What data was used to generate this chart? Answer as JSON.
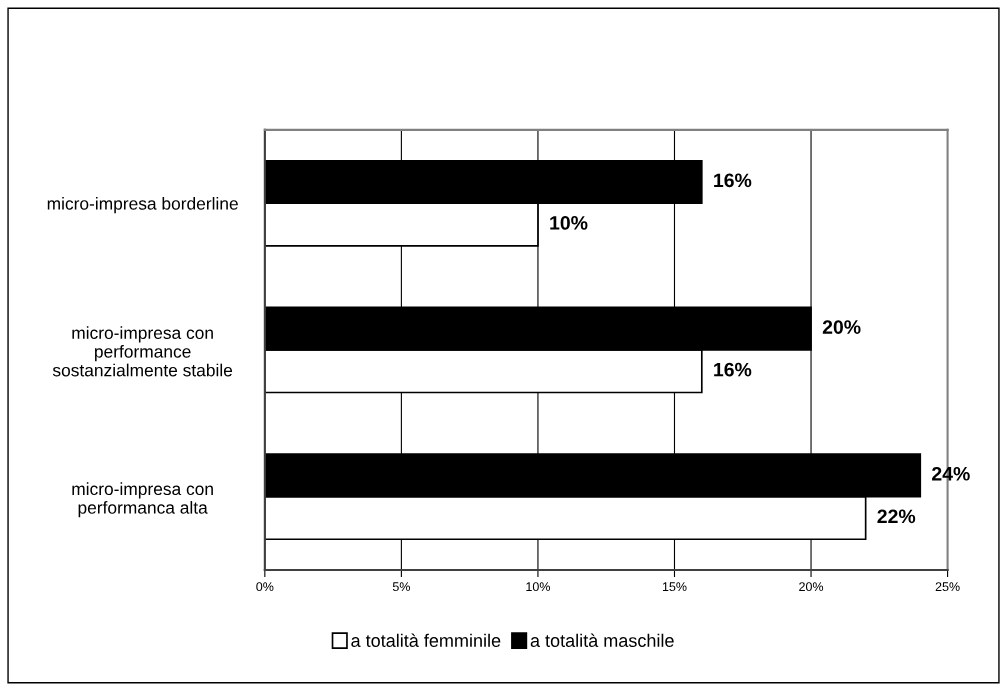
{
  "chart_data": {
    "type": "bar",
    "orientation": "horizontal",
    "categories": [
      "micro-impresa borderline",
      "micro-impresa con\nperformance\nsostanzialmente stabile",
      "micro-impresa con\nperformanca alta"
    ],
    "series": [
      {
        "name": "a totalità femminile",
        "color": "#ffffff",
        "values": [
          10,
          16,
          22
        ],
        "value_labels": [
          "10%",
          "16%",
          "22%"
        ]
      },
      {
        "name": "a totalità maschile",
        "color": "#000000",
        "values": [
          16,
          20,
          24
        ],
        "value_labels": [
          "16%",
          "20%",
          "24%"
        ]
      }
    ],
    "xlim": [
      0,
      25
    ],
    "xticks": [
      {
        "value": 0,
        "label": "0%"
      },
      {
        "value": 5,
        "label": "5%"
      },
      {
        "value": 10,
        "label": "10%"
      },
      {
        "value": 15,
        "label": "15%"
      },
      {
        "value": 20,
        "label": "20%"
      },
      {
        "value": 25,
        "label": "25%"
      }
    ],
    "grid": "x",
    "legend": "bottom"
  }
}
